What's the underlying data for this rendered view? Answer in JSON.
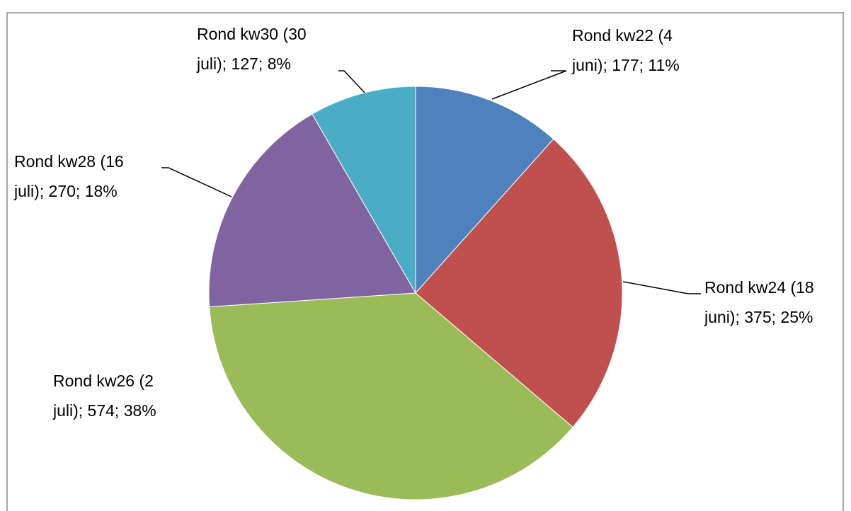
{
  "chart_data": {
    "type": "pie",
    "values": [
      177,
      375,
      574,
      270,
      127
    ],
    "value_labels": [
      [
        "Rond kw22 (4",
        "juni); 177; 11%"
      ],
      [
        "Rond kw24 (18",
        "juni); 375; 25%"
      ],
      [
        "Rond kw26 (2",
        "juli); 574; 38%"
      ],
      [
        "Rond kw28 (16",
        "juli); 270; 18%"
      ],
      [
        "Rond kw30 (30",
        "juli); 127; 8%"
      ]
    ],
    "colors": [
      "#4f81bd",
      "#c0504d",
      "#9bbb59",
      "#8064a2",
      "#4bacc6"
    ]
  }
}
